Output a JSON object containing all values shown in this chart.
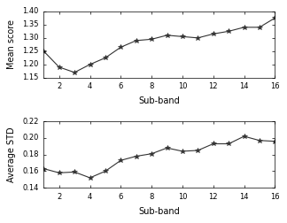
{
  "x": [
    1,
    2,
    3,
    4,
    5,
    6,
    7,
    8,
    9,
    10,
    11,
    12,
    13,
    14,
    15,
    16
  ],
  "mean_score": [
    1.25,
    1.19,
    1.17,
    1.2,
    1.225,
    1.265,
    1.29,
    1.295,
    1.31,
    1.305,
    1.3,
    1.315,
    1.325,
    1.34,
    1.34,
    1.375
  ],
  "avg_std": [
    0.163,
    0.158,
    0.159,
    0.152,
    0.16,
    0.173,
    0.178,
    0.181,
    0.188,
    0.184,
    0.185,
    0.193,
    0.193,
    0.202,
    0.197,
    0.196
  ],
  "mean_ylim": [
    1.15,
    1.4
  ],
  "std_ylim": [
    0.14,
    0.22
  ],
  "mean_yticks": [
    1.15,
    1.2,
    1.25,
    1.3,
    1.35,
    1.4
  ],
  "std_yticks": [
    0.14,
    0.16,
    0.18,
    0.2,
    0.22
  ],
  "xticks": [
    2,
    4,
    6,
    8,
    10,
    12,
    14,
    16
  ],
  "xlim": [
    1,
    16
  ],
  "xlabel": "Sub-band",
  "mean_ylabel": "Mean score",
  "std_ylabel": "Average STD",
  "line_color": "#333333",
  "marker": "*",
  "markersize": 4,
  "linewidth": 0.8,
  "bg_color": "#ffffff"
}
